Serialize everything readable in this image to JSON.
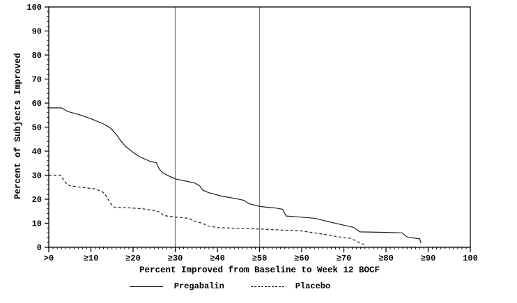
{
  "chart_data": {
    "type": "line",
    "title": "",
    "xlabel": "Percent Improved from Baseline to Week 12 BOCF",
    "ylabel": "Percent of Subjects Improved",
    "xlim": [
      0,
      100
    ],
    "ylim": [
      0,
      100
    ],
    "x_tick_values": [
      0,
      10,
      20,
      30,
      40,
      50,
      60,
      70,
      80,
      90,
      100
    ],
    "x_tick_labels": [
      ">0",
      "≥10",
      "≥20",
      "≥30",
      "≥40",
      "≥50",
      "≥60",
      "≥70",
      "≥80",
      "≥90",
      "100"
    ],
    "y_tick_values": [
      0,
      10,
      20,
      30,
      40,
      50,
      60,
      70,
      80,
      90,
      100
    ],
    "y_tick_labels": [
      "0",
      "10",
      "20",
      "30",
      "40",
      "50",
      "60",
      "70",
      "80",
      "90",
      "100"
    ],
    "x_minor_step": 1,
    "y_minor_step": 2,
    "grid": false,
    "legend_position": "bottom",
    "reference_lines_x": [
      30,
      50
    ],
    "series": [
      {
        "name": "Pregabalin",
        "line_style": "solid",
        "points": [
          [
            0,
            58
          ],
          [
            3,
            58
          ],
          [
            4.5,
            56.5
          ],
          [
            7,
            55.3
          ],
          [
            10,
            53.5
          ],
          [
            13,
            51.3
          ],
          [
            14.5,
            49.8
          ],
          [
            16,
            47
          ],
          [
            17,
            44.5
          ],
          [
            18.2,
            42
          ],
          [
            20,
            39.5
          ],
          [
            21.5,
            37.7
          ],
          [
            24,
            35.8
          ],
          [
            25.5,
            35.2
          ],
          [
            26.2,
            32.6
          ],
          [
            27,
            31
          ],
          [
            28.6,
            29.6
          ],
          [
            29.8,
            28.6
          ],
          [
            30.5,
            28.3
          ],
          [
            34.5,
            26.8
          ],
          [
            35.8,
            25.6
          ],
          [
            36.5,
            23.8
          ],
          [
            38,
            22.7
          ],
          [
            41,
            21.3
          ],
          [
            44.5,
            20.2
          ],
          [
            46.4,
            19.5
          ],
          [
            47.4,
            18.2
          ],
          [
            50,
            17
          ],
          [
            54,
            16.3
          ],
          [
            55.5,
            15.8
          ],
          [
            56.3,
            13
          ],
          [
            58,
            12.8
          ],
          [
            63,
            12.1
          ],
          [
            66,
            10.8
          ],
          [
            70,
            9.2
          ],
          [
            72.3,
            8.3
          ],
          [
            73.8,
            6.4
          ],
          [
            80,
            6.2
          ],
          [
            83.8,
            6
          ],
          [
            85,
            4.3
          ],
          [
            88,
            3.5
          ],
          [
            88.3,
            1.8
          ]
        ]
      },
      {
        "name": "Placebo",
        "line_style": "dashed",
        "points": [
          [
            0,
            30
          ],
          [
            2.8,
            30
          ],
          [
            4,
            26.8
          ],
          [
            5,
            25.6
          ],
          [
            7.5,
            25
          ],
          [
            11,
            24.3
          ],
          [
            12.8,
            23
          ],
          [
            13.6,
            21.4
          ],
          [
            14.5,
            18.6
          ],
          [
            15.5,
            16.7
          ],
          [
            19,
            16.4
          ],
          [
            22,
            16.1
          ],
          [
            25.5,
            15.2
          ],
          [
            26.3,
            14.6
          ],
          [
            27.3,
            13.2
          ],
          [
            30,
            12.6
          ],
          [
            33,
            12.1
          ],
          [
            34.7,
            10.8
          ],
          [
            36.4,
            10
          ],
          [
            37.7,
            8.9
          ],
          [
            40,
            8.2
          ],
          [
            45.8,
            7.8
          ],
          [
            50,
            7.6
          ],
          [
            55,
            7.2
          ],
          [
            59.5,
            6.9
          ],
          [
            63,
            6
          ],
          [
            66,
            5.2
          ],
          [
            70,
            4
          ],
          [
            71.6,
            3.7
          ],
          [
            72.7,
            2.8
          ],
          [
            74,
            1.6
          ],
          [
            75,
            1.1
          ]
        ]
      }
    ],
    "colors": {
      "axis": "#000000",
      "line": "#1a1a1a",
      "reference_line": "#777777",
      "background": "#ffffff"
    }
  }
}
